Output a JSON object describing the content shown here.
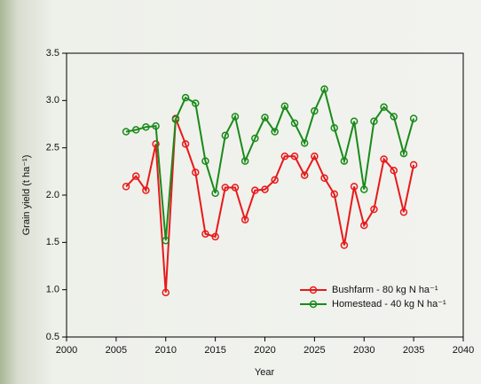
{
  "chart_data": {
    "type": "line",
    "x_label": "Year",
    "y_label": "Grain yield (t ha⁻¹)",
    "x": [
      2006,
      2007,
      2008,
      2009,
      2010,
      2011,
      2012,
      2013,
      2014,
      2015,
      2016,
      2017,
      2018,
      2019,
      2020,
      2021,
      2022,
      2023,
      2024,
      2025,
      2026,
      2027,
      2028,
      2029,
      2030,
      2031,
      2032,
      2033,
      2034,
      2035
    ],
    "series": [
      {
        "name": "Bushfarm - 80 kg N ha⁻¹",
        "color": "#e8191a",
        "values": [
          2.09,
          2.2,
          2.05,
          2.54,
          0.97,
          2.81,
          2.54,
          2.24,
          1.59,
          1.56,
          2.08,
          2.08,
          1.74,
          2.05,
          2.06,
          2.16,
          2.41,
          2.41,
          2.21,
          2.41,
          2.18,
          2.01,
          1.47,
          2.09,
          1.68,
          1.85,
          2.38,
          2.26,
          1.82,
          2.32
        ]
      },
      {
        "name": "Homestead - 40 kg N ha⁻¹",
        "color": "#1a8a1a",
        "values": [
          2.67,
          2.69,
          2.72,
          2.73,
          1.52,
          2.8,
          3.03,
          2.97,
          2.36,
          2.02,
          2.63,
          2.83,
          2.36,
          2.6,
          2.82,
          2.67,
          2.94,
          2.76,
          2.55,
          2.89,
          3.12,
          2.71,
          2.36,
          2.78,
          2.06,
          2.78,
          2.93,
          2.83,
          2.44,
          2.81
        ]
      }
    ],
    "xlim": [
      2000,
      2040
    ],
    "xticks": [
      2000,
      2005,
      2010,
      2015,
      2020,
      2025,
      2030,
      2035,
      2040
    ],
    "ylim": [
      0.5,
      3.5
    ],
    "yticks": [
      {
        "value": 0.5,
        "label": "0.5"
      },
      {
        "value": 1,
        "label": "1.0"
      },
      {
        "value": 1.5,
        "label": "1.5"
      },
      {
        "value": 2,
        "label": "2.0"
      },
      {
        "value": 2.5,
        "label": "2.5"
      },
      {
        "value": 3,
        "label": "3.0"
      },
      {
        "value": 3.5,
        "label": "3.5"
      }
    ],
    "legend": "lower right"
  }
}
